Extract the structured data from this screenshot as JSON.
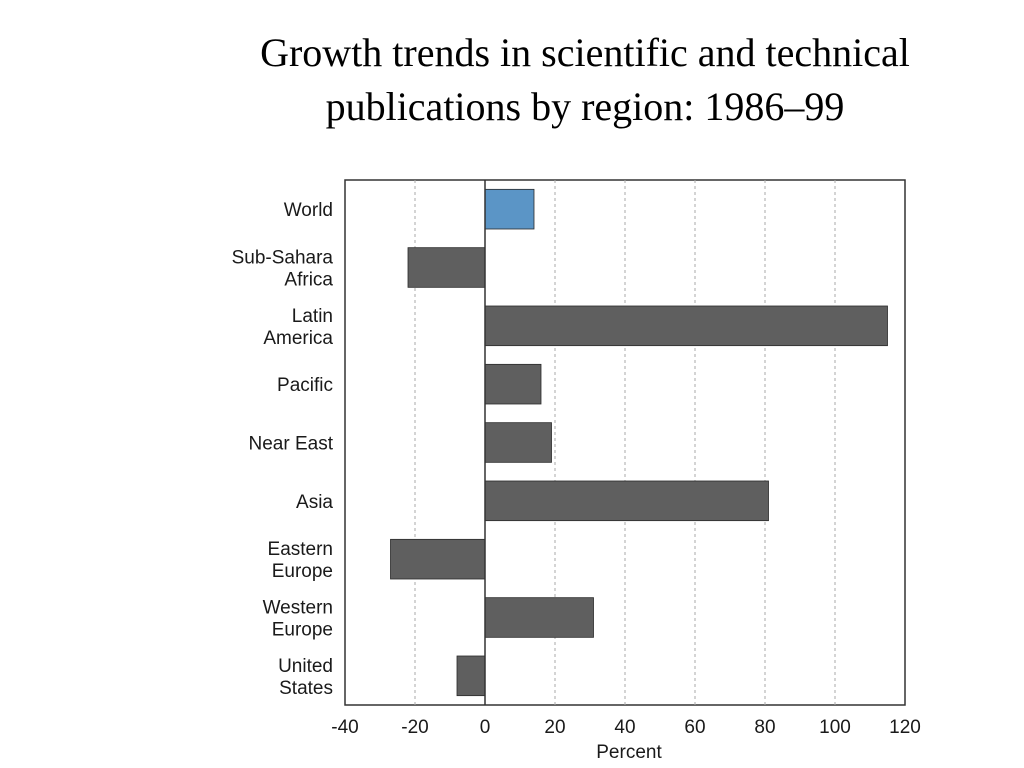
{
  "slide": {
    "title_line1": "Growth trends in scientific and technical",
    "title_line2": "publications by region: 1986–99"
  },
  "chart_data": {
    "type": "bar",
    "orientation": "horizontal",
    "title": "Growth trends in scientific and technical publications by region: 1986–99",
    "xlabel": "Percent",
    "ylabel": "",
    "xlim": [
      -40,
      120
    ],
    "xticks": [
      -40,
      -20,
      0,
      20,
      40,
      60,
      80,
      100,
      120
    ],
    "grid": "vertical dashed",
    "categories": [
      [
        "World"
      ],
      [
        "Sub-Sahara",
        "Africa"
      ],
      [
        "Latin",
        "America"
      ],
      [
        "Pacific"
      ],
      [
        "Near East"
      ],
      [
        "Asia"
      ],
      [
        "Eastern",
        "Europe"
      ],
      [
        "Western",
        "Europe"
      ],
      [
        "United",
        "States"
      ]
    ],
    "values": [
      14,
      -22,
      115,
      16,
      19,
      81,
      -27,
      31,
      -8
    ],
    "colors": {
      "highlight": "#5b95c6",
      "bar": "#5f5f5f",
      "axis": "#333333",
      "grid": "#aaaaaa"
    },
    "highlight_index": 0
  }
}
